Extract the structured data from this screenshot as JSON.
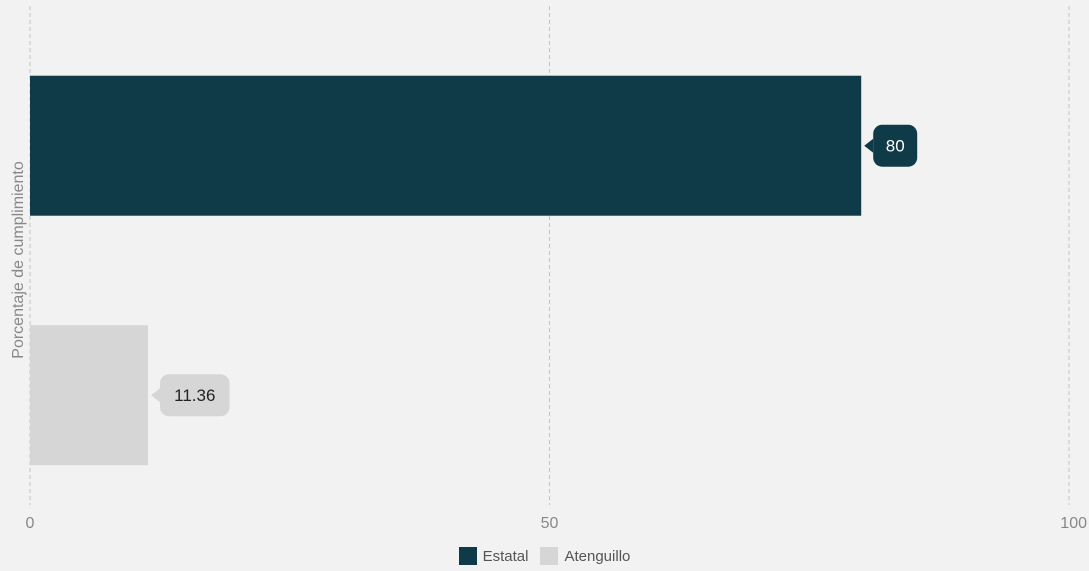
{
  "chart_data": {
    "type": "bar",
    "orientation": "horizontal",
    "ylabel": "Porcentaje de cumplimiento",
    "xlim": [
      0,
      100
    ],
    "xticks": [
      0,
      50,
      100
    ],
    "grid": true,
    "legend_position": "bottom-center",
    "series": [
      {
        "name": "Estatal",
        "value": 80,
        "label": "80",
        "color": "#0f3a47",
        "label_text_color": "#ffffff"
      },
      {
        "name": "Atenguillo",
        "value": 11.36,
        "label": "11.36",
        "color": "#d6d6d6",
        "label_text_color": "#222222"
      }
    ]
  }
}
